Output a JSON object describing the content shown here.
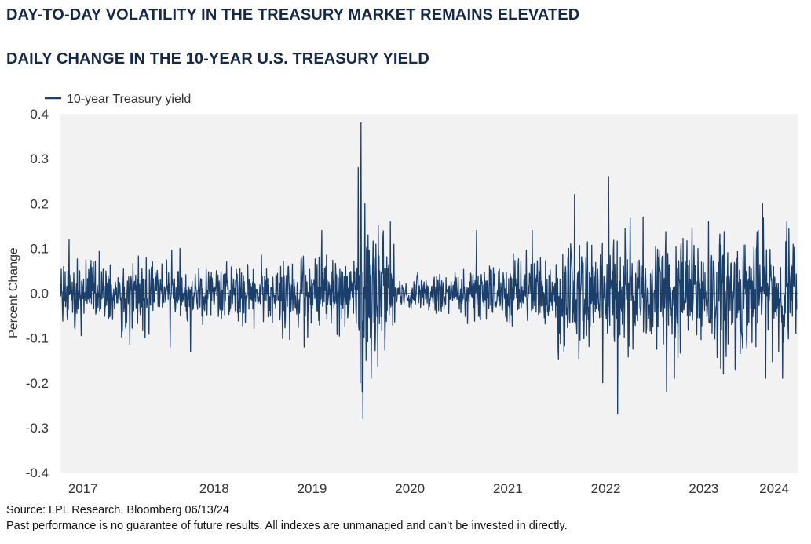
{
  "header": {
    "title": "DAY-TO-DAY VOLATILITY IN THE TREASURY MARKET REMAINS ELEVATED",
    "subtitle": "DAILY CHANGE IN THE 10-YEAR U.S. TREASURY YIELD"
  },
  "footer": {
    "source": "Source: LPL Research, Bloomberg 06/13/24",
    "disclaimer": "Past performance is no guarantee of future results. All indexes are unmanaged and can’t be invested in directly."
  },
  "colors": {
    "series": "#1b3f6b",
    "plot_bg": "#f2f2f2",
    "title": "#13294b"
  },
  "chart_data": {
    "type": "line",
    "title": "DAILY CHANGE IN THE 10-YEAR U.S. TREASURY YIELD",
    "xlabel": "",
    "ylabel": "Percent Change",
    "ylim": [
      -0.4,
      0.4
    ],
    "yticks": [
      "0.4",
      "0.3",
      "0.2",
      "0.1",
      "0.0",
      "-0.1",
      "-0.2",
      "-0.3",
      "-0.4"
    ],
    "xlim": [
      2016.93,
      2024.46
    ],
    "xticks": [
      "2017",
      "2018",
      "2019",
      "2020",
      "2021",
      "2022",
      "2023",
      "2024"
    ],
    "legend": {
      "entries": [
        "10-year Treasury yield"
      ],
      "position": "top-left"
    },
    "grid": false,
    "series": [
      {
        "name": "10-year Treasury yield",
        "generated": true,
        "start": 2016.93,
        "end": 2024.45,
        "daily_points": 1880,
        "volatility_by_year": [
          {
            "from": 2016.9,
            "to": 2018.0,
            "std": 0.036
          },
          {
            "from": 2018.0,
            "to": 2019.0,
            "std": 0.03
          },
          {
            "from": 2019.0,
            "to": 2020.0,
            "std": 0.038
          },
          {
            "from": 2020.0,
            "to": 2020.35,
            "std": 0.075
          },
          {
            "from": 2020.35,
            "to": 2021.0,
            "std": 0.022
          },
          {
            "from": 2021.0,
            "to": 2022.0,
            "std": 0.034
          },
          {
            "from": 2022.0,
            "to": 2023.0,
            "std": 0.062
          },
          {
            "from": 2023.0,
            "to": 2024.5,
            "std": 0.064
          }
        ],
        "notable_points": [
          {
            "x": 2017.02,
            "y": 0.12
          },
          {
            "x": 2017.08,
            "y": -0.08
          },
          {
            "x": 2018.05,
            "y": -0.12
          },
          {
            "x": 2018.15,
            "y": 0.1
          },
          {
            "x": 2018.26,
            "y": -0.13
          },
          {
            "x": 2019.42,
            "y": -0.12
          },
          {
            "x": 2019.6,
            "y": 0.14
          },
          {
            "x": 2019.97,
            "y": 0.28
          },
          {
            "x": 2019.99,
            "y": -0.2
          },
          {
            "x": 2020.0,
            "y": 0.38
          },
          {
            "x": 2020.01,
            "y": -0.22
          },
          {
            "x": 2020.02,
            "y": -0.28
          },
          {
            "x": 2020.04,
            "y": 0.2
          },
          {
            "x": 2020.05,
            "y": -0.15
          },
          {
            "x": 2020.07,
            "y": 0.13
          },
          {
            "x": 2021.18,
            "y": 0.14
          },
          {
            "x": 2021.75,
            "y": 0.14
          },
          {
            "x": 2022.18,
            "y": 0.22
          },
          {
            "x": 2022.47,
            "y": -0.2
          },
          {
            "x": 2022.53,
            "y": 0.26
          },
          {
            "x": 2022.62,
            "y": -0.27
          },
          {
            "x": 2022.88,
            "y": 0.17
          },
          {
            "x": 2023.12,
            "y": -0.22
          },
          {
            "x": 2023.2,
            "y": -0.19
          },
          {
            "x": 2023.55,
            "y": 0.16
          },
          {
            "x": 2023.7,
            "y": -0.18
          },
          {
            "x": 2023.82,
            "y": -0.17
          },
          {
            "x": 2024.1,
            "y": 0.2
          },
          {
            "x": 2024.35,
            "y": 0.16
          },
          {
            "x": 2024.44,
            "y": -0.09
          }
        ]
      }
    ]
  }
}
